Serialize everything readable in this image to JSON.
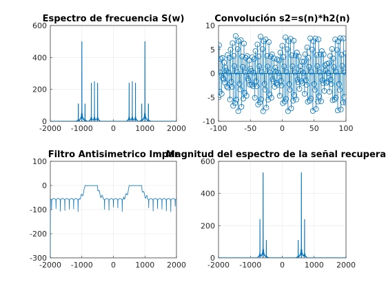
{
  "figure": {
    "background": "#ffffff",
    "line_color": "#0072bd"
  },
  "chart_data": [
    {
      "type": "line",
      "title": "Espectro de frecuencia S(w)",
      "xlim": [
        -2000,
        2000
      ],
      "ylim": [
        0,
        600
      ],
      "xticks": [
        -2000,
        -1000,
        0,
        1000,
        2000
      ],
      "yticks": [
        0,
        200,
        400,
        600
      ],
      "xtick_labels": [
        "-2000",
        "-1000",
        "0",
        "1000",
        "2000"
      ],
      "ytick_labels": [
        "0",
        "200",
        "400",
        "600"
      ],
      "grid": true,
      "peaks": [
        {
          "x": -1110,
          "y": 110
        },
        {
          "x": -1000,
          "y": 500
        },
        {
          "x": -900,
          "y": 110
        },
        {
          "x": -700,
          "y": 240
        },
        {
          "x": -600,
          "y": 250
        },
        {
          "x": -500,
          "y": 240
        },
        {
          "x": 500,
          "y": 240
        },
        {
          "x": 600,
          "y": 250
        },
        {
          "x": 700,
          "y": 240
        },
        {
          "x": 900,
          "y": 110
        },
        {
          "x": 1000,
          "y": 500
        },
        {
          "x": 1110,
          "y": 110
        }
      ]
    },
    {
      "type": "stem",
      "title": "Convolución s2=s(n)*h2(n)",
      "xlim": [
        -100,
        100
      ],
      "ylim": [
        -10,
        10
      ],
      "xticks": [
        -100,
        -50,
        0,
        50,
        100
      ],
      "yticks": [
        -10,
        -5,
        0,
        5,
        10
      ],
      "xtick_labels": [
        "-100",
        "-50",
        "0",
        "50",
        "100"
      ],
      "ytick_labels": [
        "-10",
        "-5",
        "0",
        "5",
        "10"
      ],
      "grid": true,
      "n_range": [
        -100,
        100
      ],
      "envelope_period": 40,
      "carrier_period": 2.6,
      "peak_amplitude": 8
    },
    {
      "type": "line",
      "title": "Filtro Antisimetrico Impar",
      "xlim": [
        -2000,
        2000
      ],
      "ylim": [
        -300,
        100
      ],
      "xticks": [
        -2000,
        -1000,
        0,
        1000,
        2000
      ],
      "yticks": [
        -300,
        -200,
        -100,
        0,
        100
      ],
      "xtick_labels": [
        "-2000",
        "-1000",
        "0",
        "1000",
        "2000"
      ],
      "ytick_labels": [
        "-300",
        "-200",
        "-100",
        "0",
        "100"
      ],
      "grid": true,
      "passbands": [
        [
          -900,
          -500
        ],
        [
          500,
          900
        ]
      ],
      "passband_level": 0,
      "stopband_level": -60,
      "notch_depth": -110,
      "notch_spacing": 140,
      "edge_value_at_xmin": -300
    },
    {
      "type": "line",
      "title": "Magnitud del espectro de la señal recuperada",
      "xlim": [
        -2000,
        2000
      ],
      "ylim": [
        0,
        600
      ],
      "xticks": [
        -2000,
        -1000,
        0,
        1000,
        2000
      ],
      "yticks": [
        0,
        200,
        400,
        600
      ],
      "xtick_labels": [
        "-2000",
        "-1000",
        "0",
        "1000",
        "2000"
      ],
      "ytick_labels": [
        "0",
        "200",
        "400",
        "600"
      ],
      "grid": true,
      "peaks": [
        {
          "x": -700,
          "y": 240
        },
        {
          "x": -600,
          "y": 530
        },
        {
          "x": -500,
          "y": 110
        },
        {
          "x": 500,
          "y": 110
        },
        {
          "x": 600,
          "y": 530
        },
        {
          "x": 700,
          "y": 240
        }
      ]
    }
  ]
}
